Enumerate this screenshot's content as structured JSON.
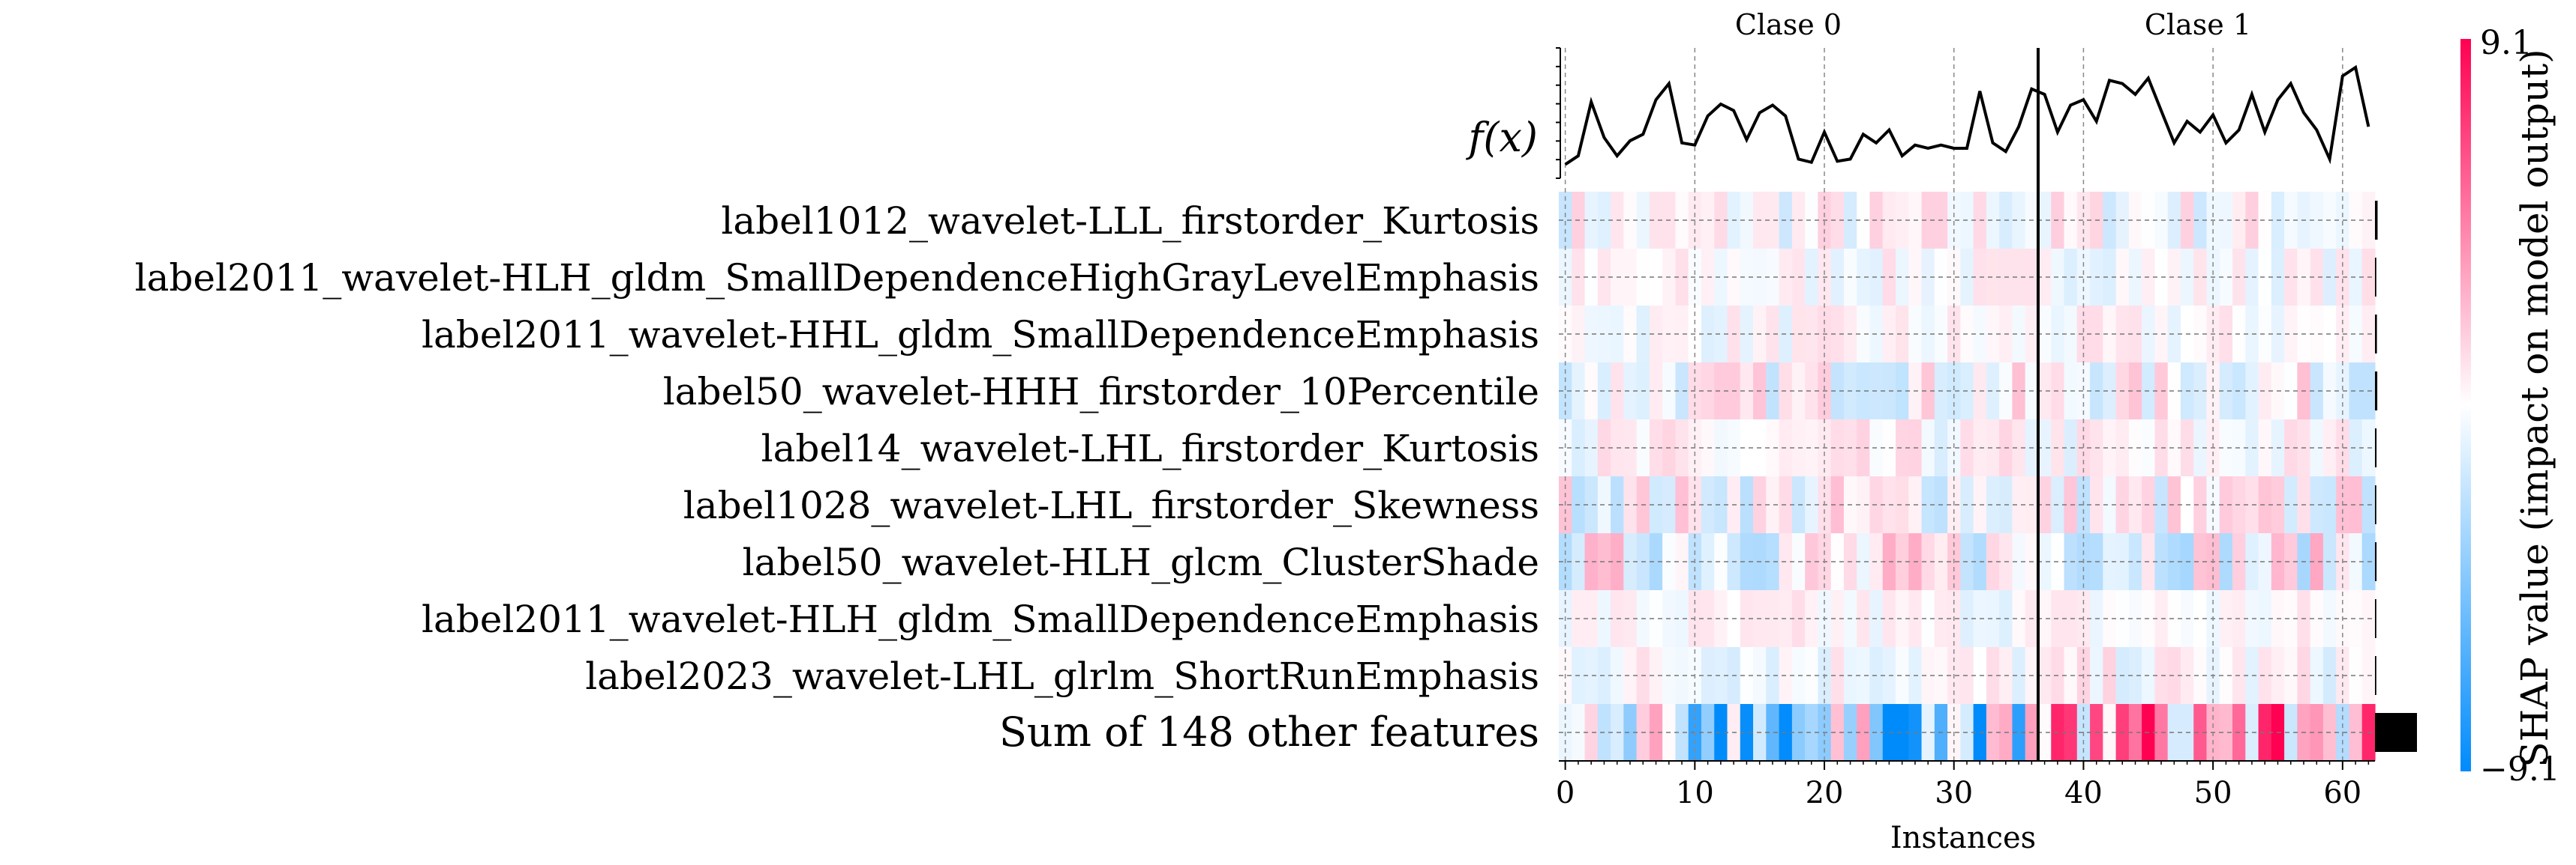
{
  "chart_data": {
    "type": "heatmap",
    "title": "",
    "group_labels": [
      "Clase 0",
      "Clase 1"
    ],
    "group_split_instance": 36.5,
    "fx_label": "f(x)",
    "xlabel": "Instances",
    "x_ticks": [
      0,
      10,
      20,
      30,
      40,
      50,
      60
    ],
    "x_range": [
      -0.5,
      62.5
    ],
    "n_instances": 63,
    "colorbar": {
      "label": "SHAP value (impact on model output)",
      "max_label": "9.1",
      "min_label": "−9.1",
      "vmin": -9.1,
      "vmax": 9.1,
      "low_color": "#008bfb",
      "mid_color": "#ffffff",
      "high_color": "#ff0052"
    },
    "features": [
      "label1012_wavelet-LLL_firstorder_Kurtosis",
      "label2011_wavelet-HLH_gldm_SmallDependenceHighGrayLevelEmphasis",
      "label2011_wavelet-HHL_gldm_SmallDependenceEmphasis",
      "label50_wavelet-HHH_firstorder_10Percentile",
      "label14_wavelet-LHL_firstorder_Kurtosis",
      "label1028_wavelet-LHL_firstorder_Skewness",
      "label50_wavelet-HLH_glcm_ClusterShade",
      "label2011_wavelet-HLH_gldm_SmallDependenceEmphasis",
      "label2023_wavelet-LHL_glrlm_ShortRunEmphasis",
      "Sum of 148 other features"
    ],
    "fx_values": [
      0.1,
      0.18,
      0.68,
      0.35,
      0.18,
      0.32,
      0.38,
      0.7,
      0.85,
      0.3,
      0.28,
      0.55,
      0.66,
      0.6,
      0.33,
      0.58,
      0.65,
      0.55,
      0.15,
      0.12,
      0.4,
      0.13,
      0.15,
      0.38,
      0.3,
      0.42,
      0.18,
      0.28,
      0.25,
      0.28,
      0.25,
      0.25,
      0.78,
      0.3,
      0.22,
      0.45,
      0.8,
      0.75,
      0.4,
      0.65,
      0.7,
      0.5,
      0.88,
      0.85,
      0.75,
      0.9,
      0.6,
      0.3,
      0.5,
      0.4,
      0.56,
      0.3,
      0.42,
      0.75,
      0.4,
      0.7,
      0.85,
      0.58,
      0.42,
      0.15,
      0.92,
      1.0,
      0.45
    ],
    "feature_importance": [
      0.02,
      0.01,
      0.015,
      0.018,
      0.012,
      0.01,
      0.012,
      0.01,
      0.01,
      0.32
    ]
  }
}
